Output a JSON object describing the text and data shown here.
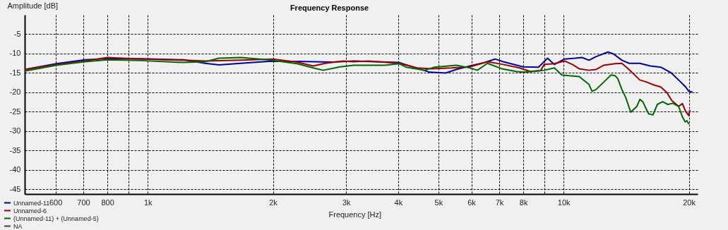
{
  "chart_data": {
    "type": "line",
    "title": "Frequency Response",
    "xlabel": "Frequency [Hz]",
    "ylabel": "Amplitude [dB]",
    "log": "x",
    "xlim": [
      506,
      21000
    ],
    "ylim": [
      -46.2,
      0
    ],
    "xticks": [
      600,
      700,
      800,
      {
        "value": 900,
        "label": null
      },
      {
        "value": 1000,
        "label": "1k"
      },
      {
        "value": 2000,
        "label": "2k"
      },
      {
        "value": 3000,
        "label": "3k"
      },
      {
        "value": 4000,
        "label": "4k"
      },
      {
        "value": 5000,
        "label": "5k"
      },
      {
        "value": 6000,
        "label": "6k"
      },
      {
        "value": 7000,
        "label": "7k"
      },
      {
        "value": 8000,
        "label": "8k"
      },
      {
        "value": 9000,
        "label": null
      },
      {
        "value": 10000,
        "label": "10k"
      },
      {
        "value": 20000,
        "label": "20k"
      }
    ],
    "yticks": [
      -5,
      -10,
      -15,
      -20,
      -25,
      -30,
      -35,
      -40,
      -45
    ],
    "grid": true,
    "legend": "bottom left",
    "marker": "none",
    "line_style": "solid",
    "series": [
      {
        "name": "Unnamed-11",
        "color": "#000099",
        "x": [
          506,
          603,
          706,
          794,
          965,
          1221,
          1374,
          1484,
          1671,
          1951,
          2284,
          2778,
          3125,
          4025,
          4446,
          4767,
          5202,
          5517,
          5955,
          6447,
          6842,
          7160,
          7987,
          8700,
          9150,
          9500,
          10050,
          10650,
          11070,
          11510,
          11950,
          12780,
          13180,
          13810,
          14370,
          15250,
          16150,
          17120,
          18160,
          18900,
          19650,
          20000,
          20400
        ],
        "values": [
          -14.1,
          -12.6,
          -11.6,
          -11.3,
          -11.3,
          -11.6,
          -12.5,
          -12.9,
          -12.5,
          -12.0,
          -12.0,
          -12.2,
          -11.9,
          -12.3,
          -13.8,
          -14.8,
          -15.0,
          -14.1,
          -13.2,
          -12.3,
          -11.4,
          -12.1,
          -13.4,
          -13.5,
          -11.2,
          -12.8,
          -11.4,
          -11.2,
          -11.0,
          -11.7,
          -10.8,
          -9.6,
          -10.1,
          -11.7,
          -12.5,
          -12.5,
          -13.2,
          -13.5,
          -15.0,
          -16.8,
          -18.6,
          -19.7,
          -19.9
        ]
      },
      {
        "name": "Unnamed-6",
        "color": "#990000",
        "x": [
          506,
          603,
          706,
          800,
          965,
          1221,
          1374,
          1671,
          2000,
          2284,
          2500,
          2670,
          2950,
          3125,
          3390,
          4025,
          4446,
          4830,
          5380,
          5950,
          6560,
          7160,
          7830,
          8310,
          8800,
          8980,
          9500,
          10050,
          10500,
          10900,
          11500,
          11950,
          12500,
          13300,
          13800,
          14300,
          15250,
          15800,
          16500,
          17120,
          17700,
          18200,
          18900,
          19300,
          19650,
          20000,
          20100
        ],
        "values": [
          -14.1,
          -12.8,
          -11.9,
          -11.0,
          -11.4,
          -11.7,
          -11.9,
          -11.7,
          -11.4,
          -12.2,
          -13.2,
          -12.5,
          -11.9,
          -12.1,
          -11.9,
          -12.5,
          -13.7,
          -13.9,
          -13.7,
          -13.4,
          -12.1,
          -12.8,
          -13.7,
          -14.6,
          -14.4,
          -12.8,
          -12.6,
          -11.9,
          -12.8,
          -13.9,
          -14.3,
          -14.1,
          -13.0,
          -12.6,
          -12.5,
          -13.9,
          -16.8,
          -17.3,
          -18.1,
          -18.6,
          -20.0,
          -22.1,
          -23.6,
          -22.9,
          -24.9,
          -26.0,
          -24.5
        ]
      },
      {
        "name": "(Unnamed-11) + (Unnamed-5)",
        "color": "#006600",
        "x": [
          506,
          603,
          706,
          800,
          965,
          1221,
          1374,
          1484,
          1671,
          1951,
          2284,
          2500,
          2640,
          2900,
          3125,
          3250,
          3720,
          4025,
          4180,
          4630,
          4890,
          5520,
          5950,
          6200,
          6560,
          7100,
          7680,
          7990,
          8470,
          8980,
          9500,
          9900,
          10300,
          10900,
          11070,
          11500,
          11700,
          11950,
          12500,
          13000,
          13300,
          13500,
          13800,
          14100,
          14500,
          15000,
          15250,
          15500,
          16000,
          16400,
          16800,
          17300,
          17800,
          18300,
          18900,
          19300,
          19600,
          19800,
          20000
        ],
        "values": [
          -14.5,
          -13.0,
          -12.1,
          -11.6,
          -11.8,
          -12.3,
          -12.1,
          -11.2,
          -11.0,
          -11.6,
          -12.6,
          -13.7,
          -14.3,
          -13.4,
          -13.0,
          -13.0,
          -13.0,
          -12.6,
          -13.5,
          -14.3,
          -13.5,
          -13.0,
          -13.7,
          -14.3,
          -12.5,
          -13.9,
          -14.6,
          -14.8,
          -14.6,
          -14.3,
          -13.7,
          -15.5,
          -15.7,
          -15.9,
          -16.5,
          -17.9,
          -19.7,
          -19.3,
          -17.3,
          -15.5,
          -15.7,
          -16.5,
          -19.2,
          -21.3,
          -25.1,
          -23.6,
          -21.8,
          -22.4,
          -25.5,
          -25.8,
          -23.1,
          -22.4,
          -23.1,
          -22.8,
          -23.6,
          -26.3,
          -27.6,
          -27.3,
          -28.2
        ]
      },
      {
        "name": "NA",
        "color": "#404040"
      }
    ]
  }
}
